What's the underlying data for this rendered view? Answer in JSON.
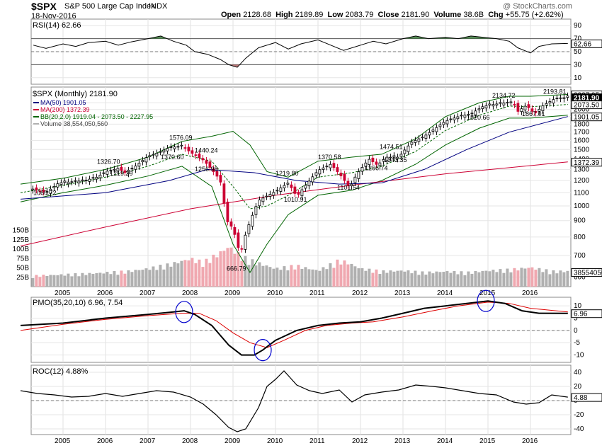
{
  "header": {
    "symbol": "$SPX",
    "name": "S&P 500 Large Cap Index",
    "exchange": "INDX",
    "date": "18-Nov-2016",
    "open_label": "Open",
    "open": "2128.68",
    "high_label": "High",
    "high": "2189.89",
    "low_label": "Low",
    "low": "2083.79",
    "close_label": "Close",
    "close": "2181.90",
    "volume_label": "Volume",
    "volume": "38.6B",
    "chg_label": "Chg",
    "chg": "+55.75 (+2.62%)",
    "watermark": "@ StockCharts.com"
  },
  "colors": {
    "price_up": "#000000",
    "price_down": "#cc0033",
    "ma50": "#000080",
    "ma200": "#cc0033",
    "bb": "#006400",
    "vol_up": "#b0b0b0",
    "vol_down": "#f0a8b0",
    "rsi_fill_hi": "#3b7a3b",
    "rsi_fill_lo": "#b06060",
    "pmo_signal": "#dd0000",
    "circle": "#0000cc"
  },
  "chart_data": [
    {
      "type": "line",
      "panel": "rsi",
      "title": "RSI(14) 62.66",
      "y_ticks": [
        10,
        30,
        50,
        70,
        90
      ],
      "ylim": [
        0,
        100
      ],
      "levels": [
        30,
        70
      ],
      "current_label": "62.66",
      "current": 62.66,
      "x": [
        2004.3,
        2004.6,
        2005.0,
        2005.3,
        2005.6,
        2006.0,
        2006.3,
        2006.6,
        2007.0,
        2007.3,
        2007.6,
        2007.9,
        2008.1,
        2008.4,
        2008.7,
        2008.9,
        2009.1,
        2009.3,
        2009.6,
        2010.0,
        2010.3,
        2010.6,
        2011.0,
        2011.3,
        2011.6,
        2012.0,
        2012.3,
        2012.6,
        2013.0,
        2013.3,
        2013.6,
        2014.0,
        2014.3,
        2014.6,
        2014.9,
        2015.2,
        2015.5,
        2015.7,
        2016.0,
        2016.2,
        2016.5,
        2016.88
      ],
      "values": [
        60,
        55,
        62,
        58,
        64,
        66,
        60,
        65,
        70,
        74,
        66,
        60,
        50,
        46,
        38,
        30,
        26,
        40,
        56,
        64,
        54,
        62,
        68,
        60,
        52,
        60,
        66,
        62,
        70,
        74,
        70,
        72,
        70,
        74,
        72,
        70,
        66,
        56,
        48,
        58,
        62,
        62.66
      ]
    },
    {
      "type": "line",
      "panel": "price",
      "title": "$SPX (Monthly) 2181.90",
      "legend": [
        {
          "label": "MA(50) 1901.05",
          "color": "#000080"
        },
        {
          "label": "MA(200) 1372.39",
          "color": "#cc0033"
        },
        {
          "label": "BB(20,2.0) 1919.04 - 2073.50 - 2227.95",
          "color": "#006400"
        },
        {
          "label": "Volume 38,554,050,560",
          "color": "#b0b0b0"
        }
      ],
      "y_scale": "log",
      "ylim": [
        560,
        2350
      ],
      "y_ticks": [
        600,
        700,
        800,
        900,
        1000,
        1100,
        1200,
        1300,
        1400,
        1500,
        1600,
        1700,
        1800,
        1900,
        2000,
        2100
      ],
      "y_tick_labels": [
        "600",
        "700",
        "800",
        "900",
        "1000",
        "1100",
        "1200",
        "1300",
        "1400",
        "1500",
        "1600",
        "1700",
        "1800",
        "1900",
        "2000",
        "2100"
      ],
      "right_value_tags": [
        {
          "label": "2227.95",
          "value": 2227.95
        },
        {
          "label": "2181.90",
          "value": 2181.9
        },
        {
          "label": "2073.50",
          "value": 2073.5
        },
        {
          "label": "1901.05",
          "value": 1901.05
        },
        {
          "label": "1372.39",
          "value": 1372.39
        }
      ],
      "annotations": [
        {
          "label": "1060.72",
          "x": 2004.6,
          "y": 1060.72
        },
        {
          "label": "1326.70",
          "x": 2006.1,
          "y": 1326.7
        },
        {
          "label": "1219.29",
          "x": 2006.4,
          "y": 1219.29
        },
        {
          "label": "1576.09",
          "x": 2007.8,
          "y": 1576.09
        },
        {
          "label": "1370.60",
          "x": 2007.6,
          "y": 1370.6
        },
        {
          "label": "1440.24",
          "x": 2008.4,
          "y": 1440.24
        },
        {
          "label": "1256.98",
          "x": 2008.4,
          "y": 1256.98
        },
        {
          "label": "666.79",
          "x": 2009.15,
          "y": 666.79
        },
        {
          "label": "1219.80",
          "x": 2010.3,
          "y": 1219.8
        },
        {
          "label": "1010.91",
          "x": 2010.5,
          "y": 1010.91
        },
        {
          "label": "1370.58",
          "x": 2011.3,
          "y": 1370.58
        },
        {
          "label": "1101.54",
          "x": 2011.75,
          "y": 1101.54
        },
        {
          "label": "1266.74",
          "x": 2012.4,
          "y": 1266.74
        },
        {
          "label": "1474.51",
          "x": 2012.75,
          "y": 1474.51
        },
        {
          "label": "1343.35",
          "x": 2012.85,
          "y": 1343.35
        },
        {
          "label": "2134.72",
          "x": 2015.4,
          "y": 2134.72
        },
        {
          "label": "1820.66",
          "x": 2014.8,
          "y": 1820.66
        },
        {
          "label": "1867.01",
          "x": 2016.1,
          "y": 1867.01
        },
        {
          "label": "2193.81",
          "x": 2016.6,
          "y": 2193.81
        }
      ],
      "series": [
        {
          "name": "$SPX",
          "x": [
            2004.0,
            2004.3,
            2004.6,
            2004.9,
            2005.2,
            2005.5,
            2005.8,
            2006.0,
            2006.3,
            2006.45,
            2006.7,
            2007.0,
            2007.2,
            2007.5,
            2007.8,
            2008.0,
            2008.3,
            2008.5,
            2008.7,
            2008.85,
            2009.0,
            2009.17,
            2009.3,
            2009.6,
            2010.0,
            2010.3,
            2010.5,
            2010.8,
            2011.0,
            2011.3,
            2011.5,
            2011.75,
            2011.9,
            2012.2,
            2012.4,
            2012.6,
            2012.9,
            2013.2,
            2013.5,
            2013.8,
            2014.0,
            2014.3,
            2014.6,
            2014.9,
            2015.2,
            2015.4,
            2015.6,
            2015.7,
            2015.9,
            2016.1,
            2016.3,
            2016.6,
            2016.88
          ],
          "values": [
            1100,
            1130,
            1100,
            1180,
            1190,
            1200,
            1230,
            1280,
            1310,
            1270,
            1330,
            1430,
            1460,
            1520,
            1540,
            1470,
            1390,
            1300,
            1200,
            900,
            850,
            700,
            820,
            1040,
            1110,
            1180,
            1070,
            1200,
            1290,
            1350,
            1260,
            1140,
            1250,
            1400,
            1340,
            1420,
            1420,
            1580,
            1650,
            1760,
            1840,
            1900,
            1940,
            2050,
            2080,
            2100,
            2100,
            1970,
            2060,
            1940,
            2060,
            2170,
            2181.9
          ]
        },
        {
          "name": "MA(50)",
          "x": [
            2004.0,
            2006.0,
            2007.5,
            2008.4,
            2009.5,
            2010.5,
            2011.5,
            2012.5,
            2013.5,
            2014.5,
            2015.5,
            2016.88
          ],
          "values": [
            1050,
            1100,
            1200,
            1300,
            1270,
            1200,
            1170,
            1180,
            1300,
            1500,
            1700,
            1901.05
          ]
        },
        {
          "name": "MA(200)",
          "x": [
            2004.0,
            2006.0,
            2008.0,
            2010.0,
            2012.0,
            2014.0,
            2016.88
          ],
          "values": [
            750,
            860,
            980,
            1080,
            1170,
            1260,
            1372.39
          ]
        },
        {
          "name": "BB upper",
          "x": [
            2004.0,
            2005.0,
            2006.0,
            2007.0,
            2007.8,
            2008.5,
            2009.0,
            2009.4,
            2009.8,
            2010.3,
            2011.0,
            2011.8,
            2012.5,
            2013.3,
            2014.0,
            2014.8,
            2015.5,
            2016.0,
            2016.88
          ],
          "values": [
            1170,
            1220,
            1300,
            1420,
            1590,
            1650,
            1710,
            1550,
            1280,
            1230,
            1380,
            1420,
            1450,
            1620,
            1900,
            2100,
            2200,
            2200,
            2227.95
          ]
        },
        {
          "name": "BB mid",
          "x": [
            2004.0,
            2005.0,
            2006.0,
            2007.0,
            2007.8,
            2008.5,
            2009.0,
            2009.4,
            2009.8,
            2010.3,
            2011.0,
            2011.8,
            2012.5,
            2013.3,
            2014.0,
            2014.8,
            2015.5,
            2016.0,
            2016.88
          ],
          "values": [
            1100,
            1160,
            1230,
            1330,
            1450,
            1380,
            1150,
            980,
            1000,
            1080,
            1230,
            1270,
            1330,
            1480,
            1720,
            1920,
            2050,
            2040,
            2073.5
          ]
        },
        {
          "name": "BB lower",
          "x": [
            2004.0,
            2005.0,
            2006.0,
            2007.0,
            2007.8,
            2008.5,
            2009.0,
            2009.4,
            2009.8,
            2010.3,
            2011.0,
            2011.8,
            2012.5,
            2013.3,
            2014.0,
            2014.8,
            2015.5,
            2016.0,
            2016.88
          ],
          "values": [
            1030,
            1100,
            1160,
            1240,
            1330,
            1150,
            760,
            620,
            760,
            940,
            1080,
            1120,
            1200,
            1350,
            1550,
            1750,
            1880,
            1880,
            1919.04
          ]
        }
      ],
      "volume": {
        "y_ticks": [
          25,
          50,
          75,
          100,
          125,
          150
        ],
        "y_tick_labels": [
          "25B",
          "50B",
          "75B",
          "100B",
          "125B",
          "150B"
        ],
        "ylim": [
          0,
          170
        ],
        "current_label": "38554050",
        "x": [
          2004.0,
          2004.5,
          2005.0,
          2005.5,
          2006.0,
          2006.5,
          2007.0,
          2007.5,
          2008.0,
          2008.3,
          2008.7,
          2008.9,
          2009.2,
          2009.5,
          2010.0,
          2010.5,
          2011.0,
          2011.5,
          2011.7,
          2012.0,
          2012.5,
          2013.0,
          2013.5,
          2014.0,
          2014.5,
          2015.0,
          2015.5,
          2016.0,
          2016.5,
          2016.88
        ],
        "values": [
          25,
          28,
          30,
          32,
          35,
          38,
          45,
          55,
          70,
          60,
          85,
          100,
          75,
          62,
          45,
          52,
          40,
          65,
          60,
          45,
          38,
          40,
          35,
          38,
          35,
          40,
          42,
          48,
          38,
          38.6
        ]
      }
    },
    {
      "type": "line",
      "panel": "pmo",
      "title": "PMO(35,20,10) 6.96, 7.54",
      "y_ticks": [
        -10,
        -5,
        0,
        5,
        10
      ],
      "y_tick_labels": [
        "-10",
        "-5",
        "0",
        "5",
        "10"
      ],
      "ylim": [
        -13,
        13.5
      ],
      "current_label": "6.96",
      "series": [
        {
          "name": "PMO",
          "x": [
            2004.0,
            2005.0,
            2006.0,
            2007.0,
            2007.6,
            2007.85,
            2008.1,
            2008.5,
            2008.9,
            2009.2,
            2009.5,
            2009.7,
            2010.0,
            2010.5,
            2011.0,
            2011.5,
            2012.0,
            2012.5,
            2013.0,
            2013.5,
            2014.0,
            2014.5,
            2015.0,
            2015.4,
            2015.8,
            2016.2,
            2016.88
          ],
          "values": [
            2,
            3,
            5,
            6.5,
            7.5,
            8,
            6.5,
            2,
            -6,
            -10,
            -10,
            -8,
            -4,
            0,
            2,
            3,
            3.5,
            5,
            7,
            9,
            10,
            11,
            12,
            11,
            8,
            7,
            6.96
          ]
        },
        {
          "name": "Signal",
          "x": [
            2004.0,
            2005.0,
            2006.0,
            2007.0,
            2007.8,
            2008.2,
            2008.6,
            2009.0,
            2009.4,
            2009.8,
            2010.2,
            2010.7,
            2011.2,
            2011.8,
            2012.3,
            2013.0,
            2013.7,
            2014.3,
            2015.0,
            2015.5,
            2016.0,
            2016.88
          ],
          "values": [
            0,
            2.5,
            4.5,
            6,
            7,
            7,
            4,
            -1,
            -5,
            -7,
            -4,
            0,
            2,
            3,
            3.5,
            5.5,
            8,
            10,
            11.5,
            11,
            9,
            7.54
          ]
        }
      ]
    },
    {
      "type": "line",
      "panel": "roc",
      "title": "ROC(12) 4.88%",
      "y_ticks": [
        -40,
        -20,
        0,
        20,
        40
      ],
      "y_tick_labels": [
        "-40",
        "-20",
        "0",
        "20",
        "40"
      ],
      "ylim": [
        -48,
        50
      ],
      "current_label": "4.88",
      "series": [
        {
          "name": "ROC",
          "x": [
            2004.0,
            2004.4,
            2004.8,
            2005.2,
            2005.6,
            2006.0,
            2006.4,
            2006.8,
            2007.2,
            2007.6,
            2008.0,
            2008.3,
            2008.6,
            2008.9,
            2009.1,
            2009.3,
            2009.6,
            2009.8,
            2010.0,
            2010.2,
            2010.5,
            2010.8,
            2011.1,
            2011.5,
            2011.8,
            2012.1,
            2012.5,
            2012.9,
            2013.3,
            2013.7,
            2014.0,
            2014.4,
            2014.8,
            2015.2,
            2015.6,
            2015.9,
            2016.2,
            2016.5,
            2016.88
          ],
          "values": [
            14,
            10,
            8,
            5,
            6,
            10,
            6,
            10,
            14,
            12,
            5,
            -5,
            -20,
            -38,
            -44,
            -40,
            -10,
            20,
            30,
            42,
            22,
            14,
            10,
            15,
            -2,
            8,
            12,
            15,
            22,
            20,
            18,
            14,
            10,
            8,
            -2,
            -5,
            -3,
            8,
            4.88
          ]
        }
      ]
    }
  ],
  "x_axis": {
    "year_labels": [
      "2005",
      "2006",
      "2007",
      "2008",
      "2009",
      "2010",
      "2011",
      "2012",
      "2013",
      "2014",
      "2015",
      "2016"
    ],
    "year_values": [
      2005,
      2006,
      2007,
      2008,
      2009,
      2010,
      2011,
      2012,
      2013,
      2014,
      2015,
      2016
    ],
    "xlim": [
      2004.25,
      2016.95
    ]
  }
}
